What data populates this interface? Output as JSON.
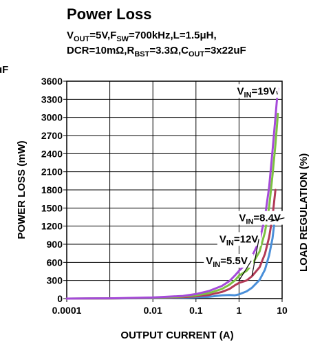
{
  "chart_data": {
    "type": "line",
    "title": "Power Loss",
    "conditions": [
      {
        "parts": [
          [
            "V",
            ""
          ],
          [
            "OUT",
            "sub"
          ],
          [
            "=5V,F",
            ""
          ],
          [
            "SW",
            "sub"
          ],
          [
            "=700kHz,L=1.5μH,",
            ""
          ]
        ]
      },
      {
        "parts": [
          [
            "DCR=10mΩ,R",
            ""
          ],
          [
            "BST",
            "sub"
          ],
          [
            "=3.3Ω,C",
            ""
          ],
          [
            "OUT",
            "sub"
          ],
          [
            "=3x22uF",
            ""
          ]
        ]
      }
    ],
    "clipped_left_text": "uF",
    "clipped_right_text": "LOAD REGULATION (%)",
    "xlabel": "OUTPUT CURRENT (A)",
    "ylabel": "POWER LOSS (mW)",
    "x_scale": "log",
    "xlim": [
      0.0001,
      10
    ],
    "ylim": [
      0,
      3600
    ],
    "x_ticks": [
      0.0001,
      0.01,
      0.1,
      1,
      10
    ],
    "x_tick_labels": [
      "0.0001",
      "0.01",
      "0.1",
      "1",
      "10"
    ],
    "x_gridlines": [
      0.001,
      0.01,
      0.1,
      1
    ],
    "y_ticks": [
      0,
      300,
      600,
      900,
      1200,
      1500,
      1800,
      2100,
      2400,
      2700,
      3000,
      3300,
      3600
    ],
    "y_tick_labels": [
      "0",
      "300",
      "600",
      "900",
      "1200",
      "1500",
      "1800",
      "2100",
      "2400",
      "2700",
      "3000",
      "3300",
      "3600"
    ],
    "y_gridlines": [
      300,
      600,
      900,
      1200,
      1500,
      1800,
      2100,
      2400,
      2700,
      3000,
      3300,
      3600
    ],
    "grid": true,
    "series": [
      {
        "name": "VIN=5.5V",
        "color": "#4a8fd9",
        "x": [
          0.0001,
          0.001,
          0.01,
          0.05,
          0.1,
          0.2,
          0.4,
          0.6,
          0.8,
          1.0,
          1.5,
          2,
          3,
          4,
          5,
          6,
          7
        ],
        "y": [
          0,
          2,
          6,
          15,
          20,
          30,
          55,
          60,
          55,
          70,
          120,
          180,
          310,
          480,
          720,
          1000,
          1400
        ]
      },
      {
        "name": "VIN=12V",
        "color": "#b23a56",
        "x": [
          0.0001,
          0.001,
          0.01,
          0.05,
          0.1,
          0.2,
          0.4,
          0.6,
          0.8,
          1.0,
          1.5,
          2,
          3,
          4,
          5,
          6,
          7
        ],
        "y": [
          0,
          3,
          10,
          25,
          38,
          60,
          110,
          160,
          220,
          260,
          300,
          370,
          520,
          740,
          1020,
          1360,
          1800
        ]
      },
      {
        "name": "VIN=8.4V",
        "color": "#7dc242",
        "x": [
          0.0001,
          0.001,
          0.01,
          0.05,
          0.1,
          0.2,
          0.4,
          0.6,
          0.8,
          1.0,
          1.5,
          2,
          3,
          4,
          5,
          6,
          7,
          8
        ],
        "y": [
          0,
          3,
          12,
          35,
          55,
          90,
          160,
          230,
          300,
          380,
          460,
          560,
          780,
          1100,
          1520,
          2050,
          2550,
          3060
        ]
      },
      {
        "name": "VIN=19V",
        "color": "#a54ad9",
        "x": [
          0.0001,
          0.001,
          0.01,
          0.05,
          0.1,
          0.2,
          0.4,
          0.6,
          0.8,
          1.0,
          1.5,
          2,
          3,
          4,
          5,
          6,
          7,
          8
        ],
        "y": [
          0,
          5,
          18,
          45,
          75,
          125,
          210,
          290,
          380,
          460,
          580,
          700,
          960,
          1350,
          1850,
          2450,
          3000,
          3480
        ]
      }
    ],
    "annotations": [
      {
        "series": "VIN=19V",
        "x": 0.9,
        "y": 3380,
        "text_main": "V",
        "text_sub": "IN",
        "text_tail": "=19V",
        "target": [
          7.8,
          3380
        ]
      },
      {
        "series": "VIN=8.4V",
        "x": 1.0,
        "y": 1280,
        "text_main": "V",
        "text_sub": "IN",
        "text_tail": "=8.4V",
        "target": [
          5.4,
          1280
        ]
      },
      {
        "series": "VIN=12V",
        "x": 0.35,
        "y": 930,
        "text_main": "V",
        "text_sub": "IN",
        "text_tail": "=12V",
        "target": [
          2.0,
          380
        ]
      },
      {
        "series": "VIN=5.5V",
        "x": 0.17,
        "y": 570,
        "text_main": "V",
        "text_sub": "IN",
        "text_tail": "=5.5V",
        "target": [
          1.0,
          300
        ]
      }
    ]
  }
}
